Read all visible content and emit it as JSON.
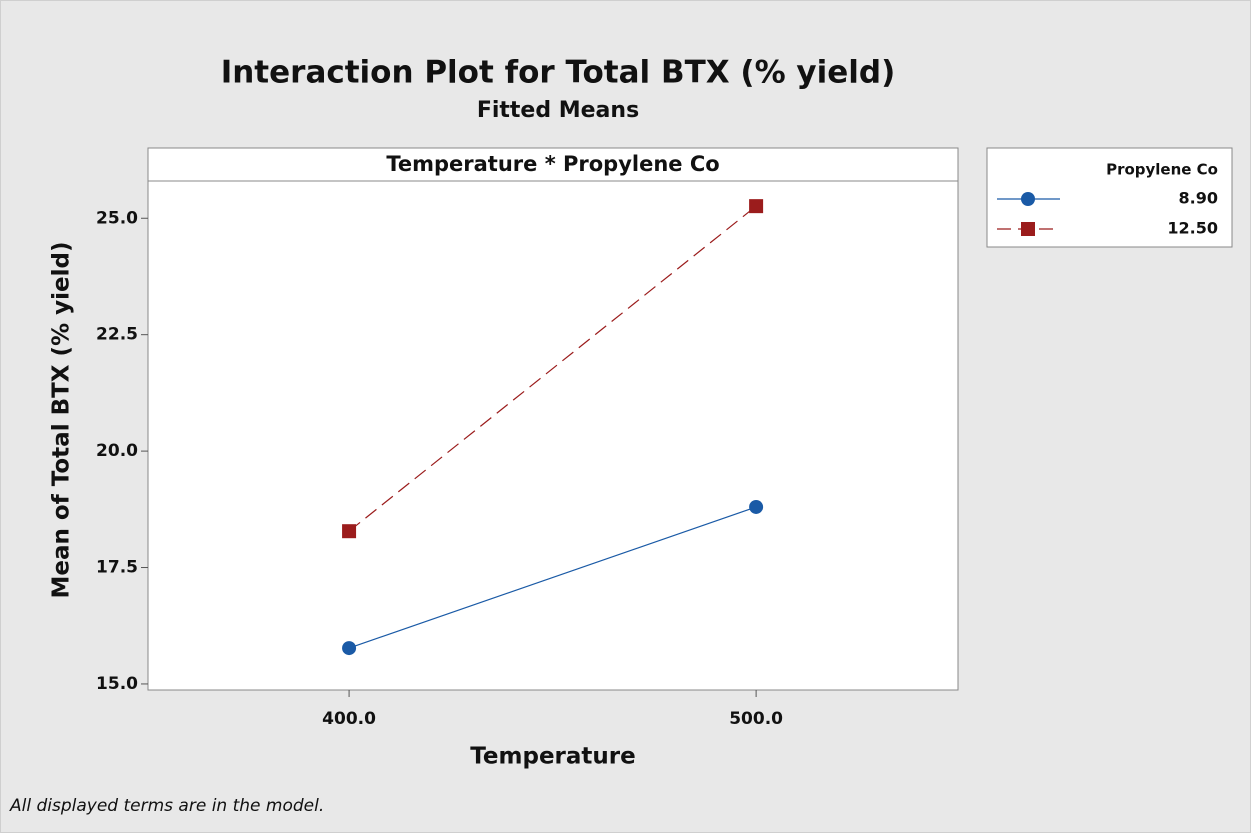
{
  "chart_data": {
    "type": "line",
    "title": "Interaction Plot for Total BTX (% yield)",
    "subtitle": "Fitted Means",
    "panel_title": "Temperature * Propylene Co",
    "x_label": "Temperature",
    "y_label": "Mean of Total BTX (% yield)",
    "legend_title": "Propylene Co",
    "legend_position": "right",
    "footnote": "All displayed terms are in the model.",
    "x": [
      400,
      500
    ],
    "series": [
      {
        "name": "8.90",
        "color": "#1a5aa6",
        "dash": "solid",
        "marker": "circle",
        "values": [
          15.77,
          18.8
        ]
      },
      {
        "name": "12.50",
        "color": "#9b1c1c",
        "dash": "dashed",
        "marker": "square",
        "values": [
          18.28,
          25.26
        ]
      }
    ],
    "xlim": [
      350.6,
      549.6
    ],
    "xticks": [
      {
        "value": 400,
        "label": "400.0"
      },
      {
        "value": 500,
        "label": "500.0"
      }
    ],
    "ylim": [
      14.87,
      25.8
    ],
    "yticks": [
      {
        "value": 15,
        "label": "15.0"
      },
      {
        "value": 17.5,
        "label": "17.5"
      },
      {
        "value": 20,
        "label": "20.0"
      },
      {
        "value": 22.5,
        "label": "22.5"
      },
      {
        "value": 25,
        "label": "25.0"
      }
    ]
  }
}
